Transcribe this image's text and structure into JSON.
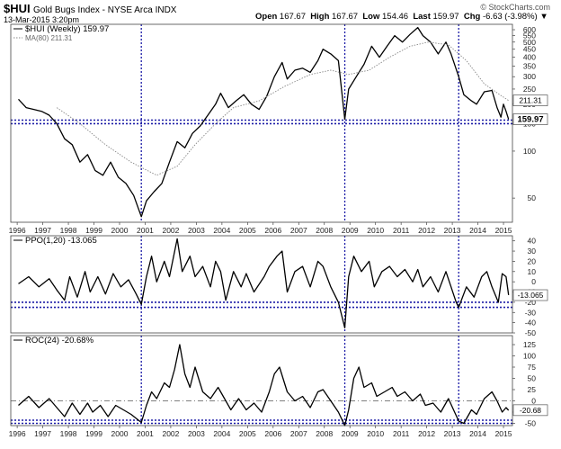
{
  "header": {
    "symbol": "$HUI",
    "name": "Gold Bugs Index - NYSE Arca  INDX",
    "date": "13-Mar-2015 3:20pm",
    "open_label": "Open",
    "open": "167.67",
    "high_label": "High",
    "high": "167.67",
    "low_label": "Low",
    "low": "154.46",
    "last_label": "Last",
    "last": "159.97",
    "chg_label": "Chg",
    "chg": "-6.63 (-3.98%)",
    "watermark": "© StockCharts.com"
  },
  "colors": {
    "price_line": "#000000",
    "ma_line": "#888888",
    "guide_line": "#1a1aa6",
    "frame": "#444444"
  },
  "chart_data": [
    {
      "type": "line",
      "panel": "price",
      "scale": "log",
      "ylim": [
        35,
        650
      ],
      "x_range": [
        1995.8,
        2015.4
      ],
      "legend": [
        {
          "label": "$HUI (Weekly) 159.97",
          "style": "solid"
        },
        {
          "label": "MA(80) 211.31",
          "style": "dotted"
        }
      ],
      "y_ticks_right": [
        50,
        100,
        150,
        200,
        250,
        300,
        350,
        400,
        450,
        500,
        550,
        600
      ],
      "last_value_badges": [
        "211.31",
        "159.97"
      ],
      "x_ticks": [
        "1996",
        "1997",
        "1998",
        "1999",
        "2000",
        "2001",
        "2002",
        "2003",
        "2004",
        "2005",
        "2006",
        "2007",
        "2008",
        "2009",
        "2010",
        "2011",
        "2012",
        "2013",
        "2014",
        "2015"
      ],
      "horizontal_guides": [
        150,
        158
      ],
      "vertical_guides": [
        2000.9,
        2008.85,
        2013.3
      ],
      "series": [
        {
          "name": "$HUI (Weekly)",
          "points": [
            [
              1996.1,
              215
            ],
            [
              1996.4,
              190
            ],
            [
              1996.7,
              185
            ],
            [
              1997.0,
              180
            ],
            [
              1997.3,
              170
            ],
            [
              1997.6,
              150
            ],
            [
              1997.9,
              120
            ],
            [
              1998.2,
              110
            ],
            [
              1998.5,
              85
            ],
            [
              1998.8,
              95
            ],
            [
              1999.1,
              75
            ],
            [
              1999.4,
              70
            ],
            [
              1999.7,
              85
            ],
            [
              2000.0,
              68
            ],
            [
              2000.3,
              62
            ],
            [
              2000.6,
              52
            ],
            [
              2000.9,
              38
            ],
            [
              2001.1,
              48
            ],
            [
              2001.4,
              55
            ],
            [
              2001.7,
              62
            ],
            [
              2002.0,
              85
            ],
            [
              2002.3,
              115
            ],
            [
              2002.6,
              105
            ],
            [
              2002.9,
              130
            ],
            [
              2003.2,
              145
            ],
            [
              2003.5,
              170
            ],
            [
              2003.8,
              200
            ],
            [
              2004.0,
              235
            ],
            [
              2004.3,
              190
            ],
            [
              2004.6,
              210
            ],
            [
              2004.9,
              230
            ],
            [
              2005.2,
              200
            ],
            [
              2005.5,
              185
            ],
            [
              2005.8,
              225
            ],
            [
              2006.1,
              300
            ],
            [
              2006.4,
              370
            ],
            [
              2006.6,
              290
            ],
            [
              2006.9,
              330
            ],
            [
              2007.2,
              340
            ],
            [
              2007.5,
              320
            ],
            [
              2007.8,
              380
            ],
            [
              2008.0,
              450
            ],
            [
              2008.3,
              420
            ],
            [
              2008.6,
              380
            ],
            [
              2008.85,
              160
            ],
            [
              2009.0,
              250
            ],
            [
              2009.3,
              300
            ],
            [
              2009.6,
              360
            ],
            [
              2009.9,
              470
            ],
            [
              2010.2,
              400
            ],
            [
              2010.5,
              470
            ],
            [
              2010.8,
              550
            ],
            [
              2011.1,
              500
            ],
            [
              2011.4,
              560
            ],
            [
              2011.7,
              620
            ],
            [
              2011.9,
              550
            ],
            [
              2012.2,
              500
            ],
            [
              2012.5,
              420
            ],
            [
              2012.8,
              500
            ],
            [
              2013.0,
              420
            ],
            [
              2013.3,
              300
            ],
            [
              2013.5,
              230
            ],
            [
              2013.8,
              210
            ],
            [
              2014.0,
              200
            ],
            [
              2014.3,
              240
            ],
            [
              2014.6,
              245
            ],
            [
              2014.8,
              190
            ],
            [
              2014.95,
              165
            ],
            [
              2015.05,
              200
            ],
            [
              2015.15,
              180
            ],
            [
              2015.25,
              160
            ]
          ]
        },
        {
          "name": "MA(80)",
          "points": [
            [
              1997.6,
              190
            ],
            [
              1998.5,
              150
            ],
            [
              1999.5,
              110
            ],
            [
              2000.5,
              85
            ],
            [
              2001.5,
              70
            ],
            [
              2002.3,
              80
            ],
            [
              2003.0,
              110
            ],
            [
              2003.8,
              150
            ],
            [
              2004.5,
              190
            ],
            [
              2005.5,
              210
            ],
            [
              2006.5,
              260
            ],
            [
              2007.5,
              310
            ],
            [
              2008.3,
              330
            ],
            [
              2009.0,
              310
            ],
            [
              2009.8,
              330
            ],
            [
              2010.6,
              400
            ],
            [
              2011.4,
              470
            ],
            [
              2012.1,
              500
            ],
            [
              2012.9,
              480
            ],
            [
              2013.6,
              380
            ],
            [
              2014.3,
              270
            ],
            [
              2014.9,
              230
            ],
            [
              2015.25,
              211
            ]
          ]
        }
      ]
    },
    {
      "type": "line",
      "panel": "ppo",
      "ylim": [
        -50,
        45
      ],
      "legend": [
        {
          "label": "PPO(1,20) -13.065",
          "style": "solid"
        }
      ],
      "y_ticks_right": [
        -50,
        -40,
        -30,
        -20,
        -10,
        0,
        10,
        20,
        30,
        40
      ],
      "last_value_badges": [
        "-13.065"
      ],
      "horizontal_guides": [
        -20,
        -25
      ],
      "series": [
        {
          "name": "PPO(1,20)",
          "points": [
            [
              1996.1,
              -2
            ],
            [
              1996.5,
              5
            ],
            [
              1996.9,
              -5
            ],
            [
              1997.3,
              3
            ],
            [
              1997.6,
              -8
            ],
            [
              1997.9,
              -18
            ],
            [
              1998.1,
              5
            ],
            [
              1998.4,
              -15
            ],
            [
              1998.7,
              10
            ],
            [
              1998.9,
              -10
            ],
            [
              1999.2,
              5
            ],
            [
              1999.5,
              -12
            ],
            [
              1999.8,
              8
            ],
            [
              2000.1,
              -5
            ],
            [
              2000.4,
              2
            ],
            [
              2000.7,
              -12
            ],
            [
              2000.9,
              -22
            ],
            [
              2001.1,
              5
            ],
            [
              2001.3,
              25
            ],
            [
              2001.5,
              0
            ],
            [
              2001.8,
              20
            ],
            [
              2002.0,
              5
            ],
            [
              2002.3,
              42
            ],
            [
              2002.5,
              10
            ],
            [
              2002.8,
              25
            ],
            [
              2003.0,
              5
            ],
            [
              2003.3,
              15
            ],
            [
              2003.6,
              -5
            ],
            [
              2003.8,
              20
            ],
            [
              2004.0,
              10
            ],
            [
              2004.2,
              -18
            ],
            [
              2004.5,
              10
            ],
            [
              2004.8,
              -5
            ],
            [
              2005.0,
              8
            ],
            [
              2005.3,
              -10
            ],
            [
              2005.7,
              5
            ],
            [
              2005.9,
              15
            ],
            [
              2006.2,
              25
            ],
            [
              2006.4,
              30
            ],
            [
              2006.6,
              -10
            ],
            [
              2006.9,
              10
            ],
            [
              2007.2,
              15
            ],
            [
              2007.5,
              -5
            ],
            [
              2007.8,
              20
            ],
            [
              2008.0,
              15
            ],
            [
              2008.3,
              -5
            ],
            [
              2008.6,
              -20
            ],
            [
              2008.85,
              -45
            ],
            [
              2009.0,
              5
            ],
            [
              2009.2,
              25
            ],
            [
              2009.5,
              10
            ],
            [
              2009.8,
              20
            ],
            [
              2010.0,
              -5
            ],
            [
              2010.3,
              10
            ],
            [
              2010.6,
              15
            ],
            [
              2010.9,
              5
            ],
            [
              2011.2,
              12
            ],
            [
              2011.5,
              0
            ],
            [
              2011.7,
              12
            ],
            [
              2011.9,
              -5
            ],
            [
              2012.2,
              5
            ],
            [
              2012.5,
              -10
            ],
            [
              2012.8,
              10
            ],
            [
              2013.0,
              -5
            ],
            [
              2013.2,
              -20
            ],
            [
              2013.3,
              -25
            ],
            [
              2013.6,
              -5
            ],
            [
              2013.9,
              -15
            ],
            [
              2014.2,
              5
            ],
            [
              2014.4,
              10
            ],
            [
              2014.6,
              -5
            ],
            [
              2014.85,
              -20
            ],
            [
              2015.0,
              8
            ],
            [
              2015.15,
              5
            ],
            [
              2015.25,
              -13
            ]
          ]
        }
      ]
    },
    {
      "type": "line",
      "panel": "roc",
      "ylim": [
        -55,
        145
      ],
      "legend": [
        {
          "label": "ROC(24) -20.68%",
          "style": "solid"
        }
      ],
      "y_ticks_right": [
        -50,
        -25,
        0,
        25,
        50,
        75,
        100,
        125
      ],
      "last_value_badges": [
        "-20.68"
      ],
      "horizontal_guides": [
        0,
        -43,
        -50
      ],
      "series": [
        {
          "name": "ROC(24)",
          "points": [
            [
              1996.1,
              -10
            ],
            [
              1996.5,
              10
            ],
            [
              1996.9,
              -15
            ],
            [
              1997.3,
              5
            ],
            [
              1997.6,
              -15
            ],
            [
              1997.9,
              -35
            ],
            [
              1998.2,
              -5
            ],
            [
              1998.5,
              -30
            ],
            [
              1998.8,
              -5
            ],
            [
              1999.0,
              -25
            ],
            [
              1999.3,
              -10
            ],
            [
              1999.6,
              -35
            ],
            [
              1999.9,
              -10
            ],
            [
              2000.2,
              -20
            ],
            [
              2000.5,
              -30
            ],
            [
              2000.9,
              -48
            ],
            [
              2001.1,
              -10
            ],
            [
              2001.3,
              20
            ],
            [
              2001.5,
              5
            ],
            [
              2001.8,
              40
            ],
            [
              2002.0,
              30
            ],
            [
              2002.2,
              70
            ],
            [
              2002.4,
              125
            ],
            [
              2002.6,
              60
            ],
            [
              2002.8,
              30
            ],
            [
              2003.0,
              75
            ],
            [
              2003.3,
              20
            ],
            [
              2003.6,
              5
            ],
            [
              2003.9,
              30
            ],
            [
              2004.1,
              10
            ],
            [
              2004.4,
              -20
            ],
            [
              2004.7,
              5
            ],
            [
              2005.0,
              -20
            ],
            [
              2005.3,
              -5
            ],
            [
              2005.6,
              -25
            ],
            [
              2005.9,
              20
            ],
            [
              2006.1,
              60
            ],
            [
              2006.3,
              75
            ],
            [
              2006.6,
              20
            ],
            [
              2006.9,
              0
            ],
            [
              2007.2,
              10
            ],
            [
              2007.5,
              -15
            ],
            [
              2007.8,
              20
            ],
            [
              2008.0,
              25
            ],
            [
              2008.3,
              0
            ],
            [
              2008.6,
              -25
            ],
            [
              2008.85,
              -55
            ],
            [
              2009.0,
              -20
            ],
            [
              2009.2,
              50
            ],
            [
              2009.4,
              75
            ],
            [
              2009.6,
              30
            ],
            [
              2009.9,
              40
            ],
            [
              2010.1,
              10
            ],
            [
              2010.4,
              20
            ],
            [
              2010.7,
              30
            ],
            [
              2010.9,
              10
            ],
            [
              2011.2,
              20
            ],
            [
              2011.5,
              0
            ],
            [
              2011.8,
              15
            ],
            [
              2012.0,
              -10
            ],
            [
              2012.3,
              -5
            ],
            [
              2012.6,
              -25
            ],
            [
              2012.9,
              5
            ],
            [
              2013.1,
              -20
            ],
            [
              2013.3,
              -45
            ],
            [
              2013.5,
              -50
            ],
            [
              2013.8,
              -20
            ],
            [
              2014.0,
              -30
            ],
            [
              2014.3,
              5
            ],
            [
              2014.6,
              20
            ],
            [
              2014.8,
              0
            ],
            [
              2015.0,
              -25
            ],
            [
              2015.15,
              -15
            ],
            [
              2015.25,
              -21
            ]
          ]
        }
      ]
    }
  ]
}
